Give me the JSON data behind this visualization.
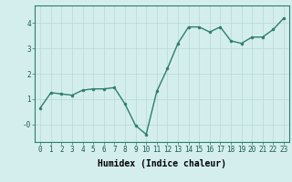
{
  "x": [
    0,
    1,
    2,
    3,
    4,
    5,
    6,
    7,
    8,
    9,
    10,
    11,
    12,
    13,
    14,
    15,
    16,
    17,
    18,
    19,
    20,
    21,
    22,
    23
  ],
  "y": [
    0.65,
    1.25,
    1.2,
    1.15,
    1.35,
    1.4,
    1.4,
    1.45,
    0.8,
    -0.05,
    -0.4,
    1.3,
    2.2,
    3.2,
    3.85,
    3.85,
    3.65,
    3.85,
    3.3,
    3.2,
    3.45,
    3.45,
    3.75,
    4.2
  ],
  "line_color": "#2e7d6e",
  "marker": "o",
  "markersize": 2.0,
  "linewidth": 1.0,
  "xlabel": "Humidex (Indice chaleur)",
  "xlabel_fontsize": 7,
  "xlim": [
    -0.5,
    23.5
  ],
  "ylim": [
    -0.7,
    4.7
  ],
  "yticks": [
    0,
    1,
    2,
    3,
    4
  ],
  "ytick_labels": [
    "-0",
    "1",
    "2",
    "3",
    "4"
  ],
  "xticks": [
    0,
    1,
    2,
    3,
    4,
    5,
    6,
    7,
    8,
    9,
    10,
    11,
    12,
    13,
    14,
    15,
    16,
    17,
    18,
    19,
    20,
    21,
    22,
    23
  ],
  "xtick_labels": [
    "0",
    "1",
    "2",
    "3",
    "4",
    "5",
    "6",
    "7",
    "8",
    "9",
    "10",
    "11",
    "12",
    "13",
    "14",
    "15",
    "16",
    "17",
    "18",
    "19",
    "20",
    "21",
    "22",
    "23"
  ],
  "background_color": "#d4eeee",
  "grid_color": "#b8d8d8",
  "tick_fontsize": 5.5,
  "spine_color": "#2e7d6e"
}
